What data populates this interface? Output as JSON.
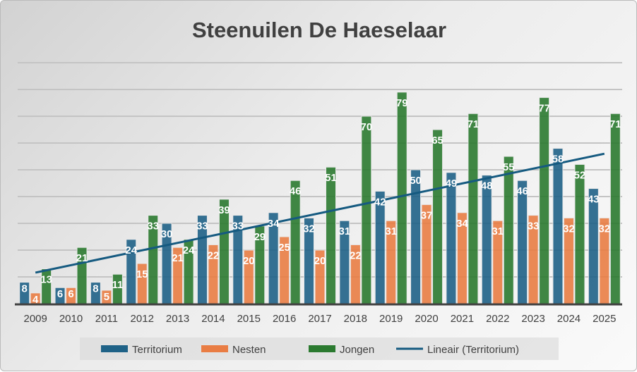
{
  "chart_data": {
    "type": "bar",
    "title": "Steenuilen De Haeselaar",
    "categories": [
      "2009",
      "2010",
      "2011",
      "2012",
      "2013",
      "2014",
      "2015",
      "2016",
      "2017",
      "2018",
      "2019",
      "2020",
      "2021",
      "2022",
      "2023",
      "2024",
      "2025"
    ],
    "series": [
      {
        "name": "Territorium",
        "color": "#1f6287",
        "values": [
          8,
          6,
          8,
          24,
          30,
          33,
          33,
          34,
          32,
          31,
          42,
          50,
          49,
          48,
          46,
          58,
          43
        ]
      },
      {
        "name": "Nesten",
        "color": "#e97d44",
        "values": [
          4,
          6,
          5,
          15,
          21,
          22,
          20,
          25,
          20,
          22,
          31,
          37,
          34,
          31,
          33,
          32,
          32
        ]
      },
      {
        "name": "Jongen",
        "color": "#2b7a30",
        "values": [
          13,
          21,
          11,
          33,
          24,
          39,
          29,
          46,
          51,
          70,
          79,
          65,
          71,
          55,
          77,
          52,
          71
        ]
      }
    ],
    "trendline": {
      "name": "Lineair (Territorium)",
      "color": "#155a80",
      "start": 11.6,
      "end": 56
    },
    "ylim": [
      0,
      90
    ],
    "ytick_step": 10,
    "grid": true,
    "legend": "bottom",
    "xlabel": "",
    "ylabel": ""
  }
}
